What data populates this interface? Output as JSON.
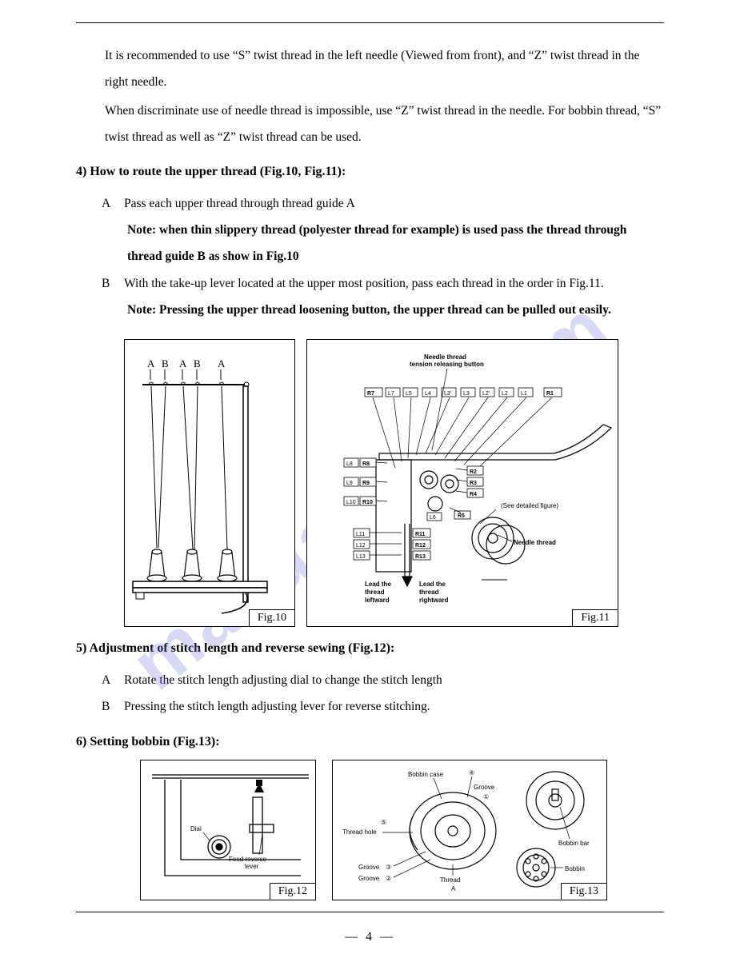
{
  "watermark_text": "manualslib.com",
  "intro": {
    "p1": "It is recommended to use “S” twist thread in the left needle (Viewed from front), and “Z” twist thread in the right needle.",
    "p2": "When discriminate use of needle thread is impossible, use “Z” twist thread in the needle. For bobbin thread, “S” twist thread as well as “Z” twist thread can be used."
  },
  "sec4": {
    "heading": "4) How to route the upper thread (Fig.10, Fig.11):",
    "items": {
      "a_label": "A",
      "a_text": "Pass each upper thread through thread guide A",
      "a_note": "Note: when thin slippery thread (polyester thread for example) is used pass the thread through thread guide B as show in Fig.10",
      "b_label": "B",
      "b_text": "With the take-up lever located at the upper most position, pass each thread in the order in Fig.11.",
      "b_note": "Note: Pressing the upper thread loosening button, the upper thread can be pulled out easily."
    }
  },
  "sec5": {
    "heading": "5) Adjustment of stitch length and reverse sewing (Fig.12):",
    "items": {
      "a_label": "A",
      "a_text": "Rotate the stitch length adjusting dial to change the stitch length",
      "b_label": "B",
      "b_text": "Pressing the stitch length adjusting lever for reverse stitching."
    }
  },
  "sec6": {
    "heading": "6) Setting bobbin (Fig.13):"
  },
  "fig10": {
    "caption": "Fig.10",
    "guide_labels": [
      "A",
      "B",
      "A",
      "B",
      "A"
    ]
  },
  "fig11": {
    "caption": "Fig.11",
    "title1": "Needle thread",
    "title2": "tension releasing button",
    "top_boxes": [
      "R7",
      "L7",
      "L5",
      "L4",
      "L3'",
      "L3",
      "L2'",
      "L2",
      "L1",
      "R1"
    ],
    "left_boxes": [
      [
        "L8",
        "R8"
      ],
      [
        "L9",
        "R9"
      ],
      [
        "L10",
        "R10"
      ]
    ],
    "left_bottom": [
      "L11",
      "L12",
      "L13"
    ],
    "right_bottom_pairs": [
      [
        "R11"
      ],
      [
        "R12"
      ],
      [
        "R13"
      ]
    ],
    "l6": "L6",
    "r_side": [
      "R2",
      "R3",
      "R4"
    ],
    "r5": "R5",
    "see_detail": "(See detailed figure)",
    "needle_thread": "Needle thread",
    "lead_left_1": "Lead the",
    "lead_left_2": "thread",
    "lead_left_3": "leftward",
    "lead_right_1": "Lead the",
    "lead_right_2": "thread",
    "lead_right_3": "rightward"
  },
  "fig12": {
    "caption": "Fig.12",
    "dial": "Dial",
    "lever1": "Feed reverse",
    "lever2": "lever"
  },
  "fig13": {
    "caption": "Fig.13",
    "bobbin_case": "Bobbin case",
    "groove": "Groove",
    "thread_hole": "Thread hole",
    "groove3": "Groove",
    "groove2": "Groove",
    "thread_a1": "Thread",
    "thread_a2": "A",
    "bobbin_bar": "Bobbin bar",
    "bobbin": "Bobbin",
    "circ1": "①",
    "circ2": "②",
    "circ3": "③",
    "circ4": "④",
    "circ5": "⑤"
  },
  "page_number": "—  4  —"
}
